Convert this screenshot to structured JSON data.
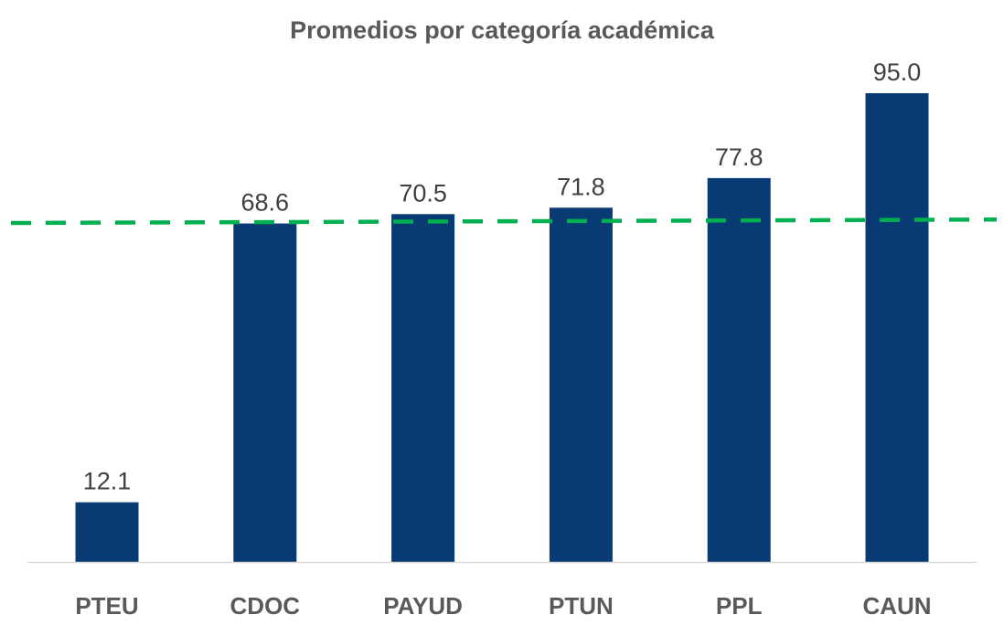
{
  "chart_data": {
    "type": "bar",
    "title": "Promedios por categoría académica",
    "xlabel": "",
    "ylabel": "",
    "categories": [
      "PTEU",
      "CDOC",
      "PAYUD",
      "PTUN",
      "PPL",
      "CAUN"
    ],
    "values": [
      12.1,
      68.6,
      70.5,
      71.8,
      77.8,
      95.0
    ],
    "data_labels": [
      "12.1",
      "68.6",
      "70.5",
      "71.8",
      "77.8",
      "95.0"
    ],
    "ylim": [
      0,
      100
    ],
    "grid": false,
    "legend": "none",
    "reference_line": {
      "style": "dashed",
      "start_value": 68.7,
      "end_value": 69.4
    },
    "colors": {
      "bar": "#083A73",
      "reference_line": "#00B050",
      "axis": "#D9D9D9"
    }
  }
}
